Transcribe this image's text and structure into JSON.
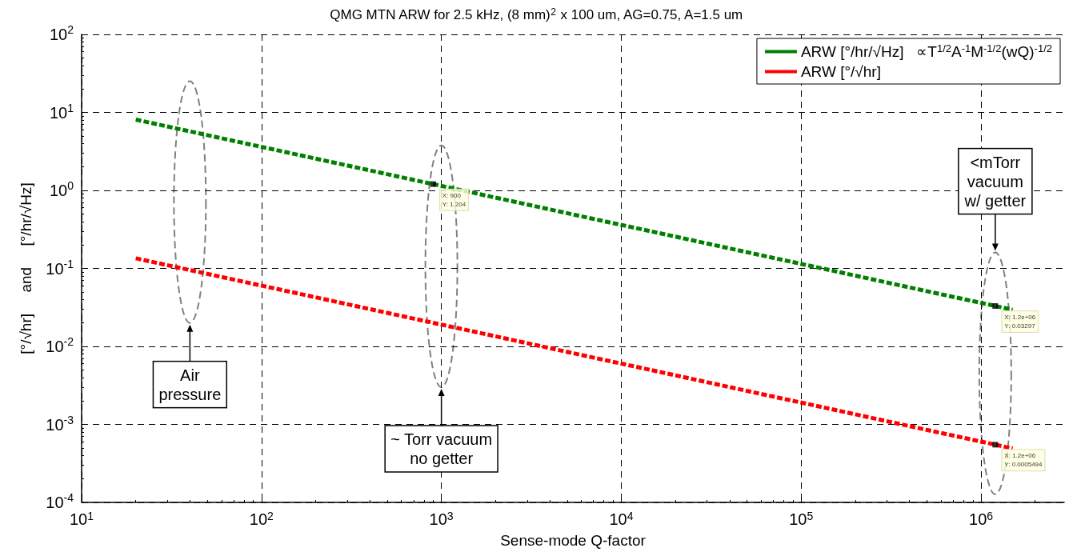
{
  "chart_data": {
    "type": "line",
    "title": "QMG MTN ARW for 2.5 kHz, (8 mm)$^{2}$ x 100 um, AG=0.75, A=1.5 um",
    "xlabel": "Sense-mode Q-factor",
    "ylabel": "[°/√hr]     and     [°/hr/√Hz]",
    "series": [
      {
        "name": "ARW [°/hr/√Hz]   ∝T$^{1/2}$A$^{-1}$M$^{-1/2}$(wQ)$^{-1/2}$",
        "color": "#008000",
        "line_style": "dashed",
        "x": [
          20,
          900,
          1200000,
          1500000
        ],
        "values": [
          8.08,
          1.204,
          0.03297,
          0.0295
        ]
      },
      {
        "name": "ARW [°/√hr]",
        "color": "#ff0000",
        "line_style": "dashed",
        "x": [
          20,
          1200000,
          1500000
        ],
        "values": [
          0.1346,
          0.0005494,
          0.000491
        ]
      },
      {
        "type": "scatter",
        "marker": "square",
        "color": "#000000",
        "x": [
          900,
          1200000,
          1200000
        ],
        "values": [
          1.204,
          0.03297,
          0.0005494
        ],
        "value_labels": [
          "X: 900\nY: 1.204",
          "X: 1.2e+06\nY: 0.03297",
          "X: 1.2e+06\nY: 0.0005494"
        ]
      }
    ],
    "log": "xy",
    "xlim": [
      10,
      2900000
    ],
    "xticks": [
      {
        "value": 10,
        "label": "10$^{1}$"
      },
      {
        "value": 100,
        "label": "10$^{2}$"
      },
      {
        "value": 1000,
        "label": "10$^{3}$"
      },
      {
        "value": 10000,
        "label": "10$^{4}$"
      },
      {
        "value": 100000,
        "label": "10$^{5}$"
      },
      {
        "value": 1000000,
        "label": "10$^{6}$"
      }
    ],
    "ylim": [
      0.0001,
      100
    ],
    "yticks": [
      {
        "value": 0.0001,
        "label": "10$^{-4}$"
      },
      {
        "value": 0.001,
        "label": "10$^{-3}$"
      },
      {
        "value": 0.01,
        "label": "10$^{-2}$"
      },
      {
        "value": 0.1,
        "label": "10$^{-1}$"
      },
      {
        "value": 1,
        "label": "10$^{0}$"
      },
      {
        "value": 10,
        "label": "10$^{1}$"
      },
      {
        "value": 100,
        "label": "10$^{2}$"
      }
    ],
    "grid": true,
    "legend": "top right",
    "annotations": [
      "Air\npressure",
      "~ Torr vacuum\nno getter",
      "<mTorr\nvacuum\nw/ getter"
    ]
  }
}
